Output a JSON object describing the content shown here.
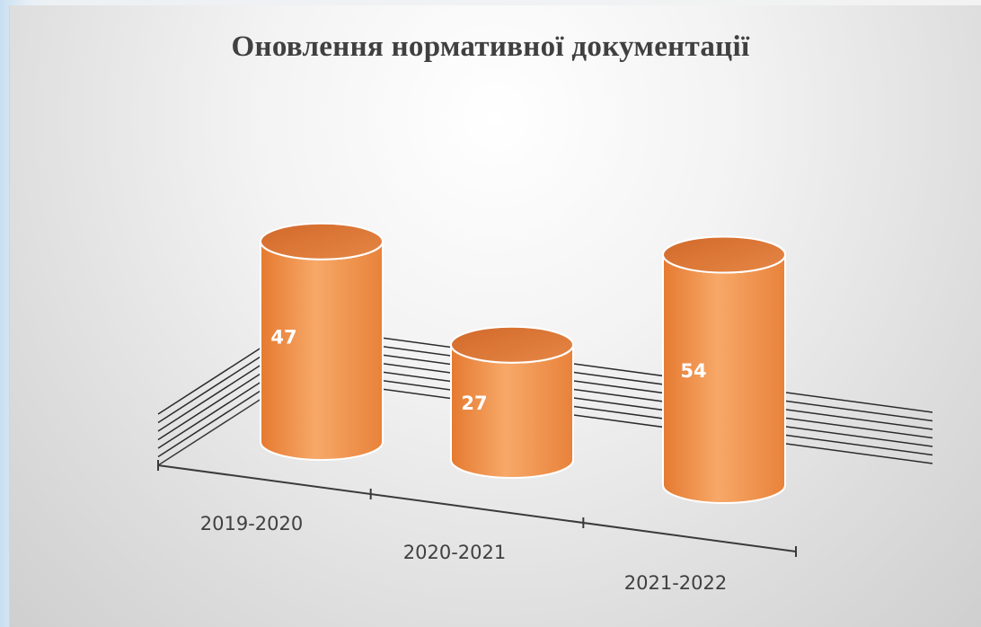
{
  "chart_data": {
    "type": "bar",
    "style": "3d-cylinder",
    "title": "Оновлення нормативної документації",
    "categories": [
      "2019-2020",
      "2020-2021",
      "2021-2022"
    ],
    "values": [
      47,
      27,
      54
    ],
    "ylim": [
      0,
      60
    ],
    "grid": true,
    "legend": "none",
    "data_labels": true,
    "bar_color": "#f08a3e",
    "bar_color_light": "#f7b27a",
    "bar_color_dark": "#d8702a"
  }
}
